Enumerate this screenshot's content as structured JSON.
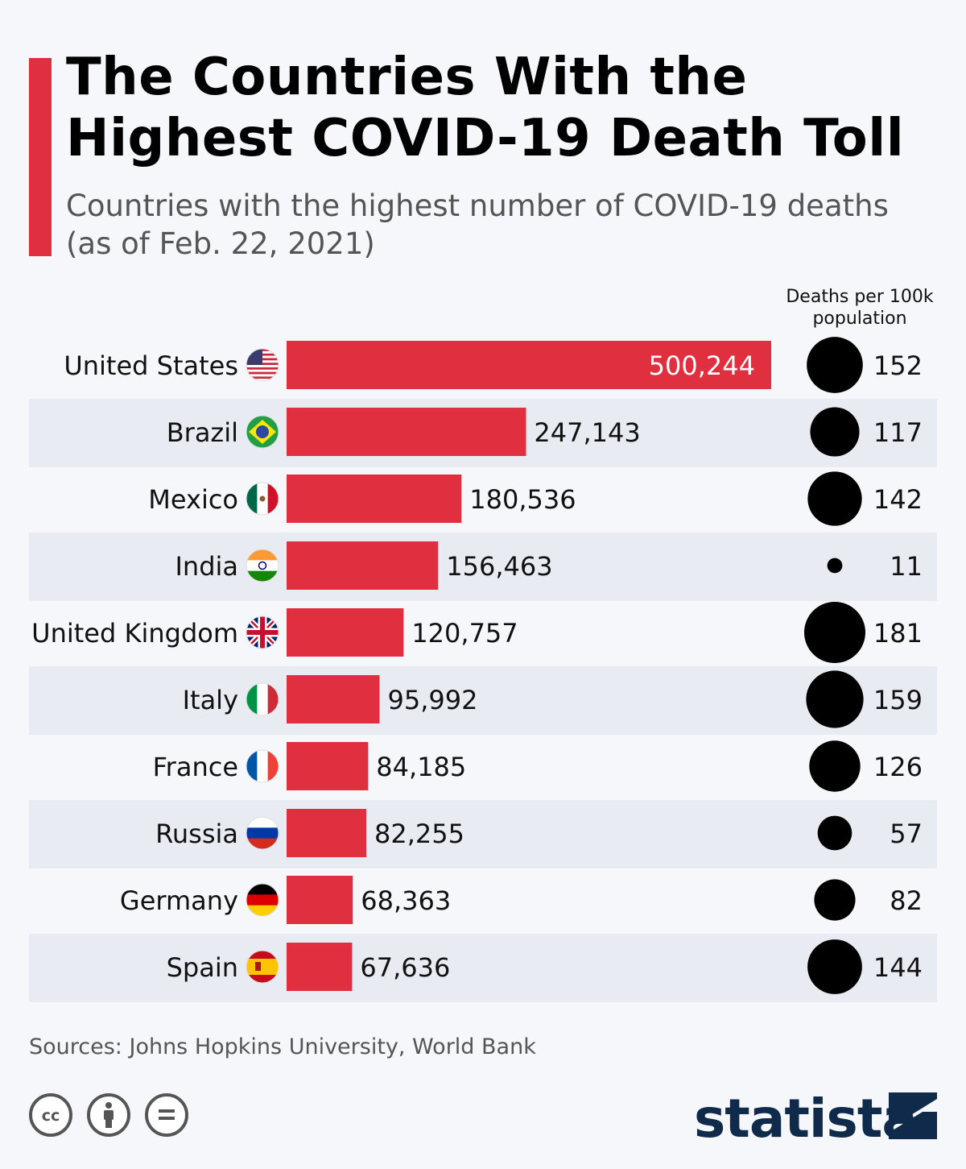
{
  "header": {
    "title": "The Countries With the Highest COVID-19 Death Toll",
    "subtitle": "Countries with the highest number of COVID-19 deaths (as of Feb. 22, 2021)",
    "rate_column_header": "Deaths per 100k population"
  },
  "colors": {
    "accent": "#e03040",
    "bar": "#e03040",
    "bubble": "#000000",
    "stripe": "#e8ecf2",
    "brand": "#0f2a4a"
  },
  "chart_data": {
    "type": "bar",
    "orientation": "horizontal",
    "title": "The Countries With the Highest COVID-19 Death Toll",
    "subtitle": "Countries with the highest number of COVID-19 deaths (as of Feb. 22, 2021)",
    "categories": [
      "United States",
      "Brazil",
      "Mexico",
      "India",
      "United Kingdom",
      "Italy",
      "France",
      "Russia",
      "Germany",
      "Spain"
    ],
    "flags": [
      "us-flag-icon",
      "brazil-flag-icon",
      "mexico-flag-icon",
      "india-flag-icon",
      "uk-flag-icon",
      "italy-flag-icon",
      "france-flag-icon",
      "russia-flag-icon",
      "germany-flag-icon",
      "spain-flag-icon"
    ],
    "series": [
      {
        "name": "COVID-19 deaths",
        "values": [
          500244,
          247143,
          180536,
          156463,
          120757,
          95992,
          84185,
          82255,
          68363,
          67636
        ],
        "labels": [
          "500,244",
          "247,143",
          "180,536",
          "156,463",
          "120,757",
          "95,992",
          "84,185",
          "82,255",
          "68,363",
          "67,636"
        ]
      },
      {
        "name": "Deaths per 100k population",
        "values": [
          152,
          117,
          142,
          11,
          181,
          159,
          126,
          57,
          82,
          144
        ],
        "labels": [
          "152",
          "117",
          "142",
          "11",
          "181",
          "159",
          "126",
          "57",
          "82",
          "144"
        ]
      }
    ],
    "xlim": [
      0,
      500244
    ]
  },
  "footer": {
    "sources": "Sources: Johns Hopkins University, World Bank",
    "license_icons": [
      "cc-icon",
      "attribution-icon",
      "no-derivatives-icon"
    ],
    "brand": "statista"
  }
}
